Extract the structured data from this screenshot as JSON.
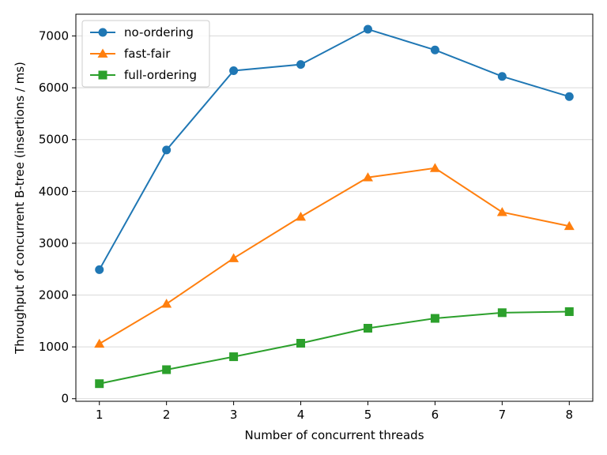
{
  "chart_data": {
    "type": "line",
    "xlabel": "Number of concurrent threads",
    "ylabel": "Throughput of concurrent B-tree (insertions / ms)",
    "x": [
      1,
      2,
      3,
      4,
      5,
      6,
      7,
      8
    ],
    "xticks": [
      1,
      2,
      3,
      4,
      5,
      6,
      7,
      8
    ],
    "yticks": [
      0,
      1000,
      2000,
      3000,
      4000,
      5000,
      6000,
      7000
    ],
    "xlim": [
      0.65,
      8.35
    ],
    "ylim": [
      -50,
      7420
    ],
    "grid": "horizontal",
    "legend": "top-left",
    "series": [
      {
        "name": "no-ordering",
        "color": "#1f77b4",
        "marker": "circle",
        "values": [
          2490,
          4800,
          6330,
          6450,
          7130,
          6730,
          6220,
          5830
        ]
      },
      {
        "name": "fast-fair",
        "color": "#ff7f0e",
        "marker": "triangle",
        "values": [
          1060,
          1830,
          2710,
          3510,
          4270,
          4450,
          3600,
          3330
        ]
      },
      {
        "name": "full-ordering",
        "color": "#2ca02c",
        "marker": "square",
        "values": [
          290,
          560,
          810,
          1070,
          1360,
          1550,
          1660,
          1680
        ]
      }
    ]
  }
}
